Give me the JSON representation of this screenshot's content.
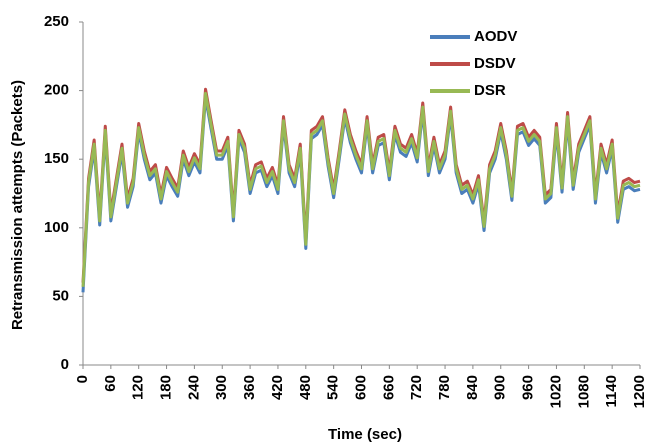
{
  "chart_data": {
    "type": "line",
    "xlabel": "Time (sec)",
    "ylabel": "Retransmission attempts (Packets)",
    "x": [
      0,
      12,
      24,
      36,
      48,
      60,
      72,
      84,
      96,
      108,
      120,
      132,
      144,
      156,
      168,
      180,
      192,
      204,
      216,
      228,
      240,
      252,
      264,
      276,
      288,
      300,
      312,
      324,
      336,
      348,
      360,
      372,
      384,
      396,
      408,
      420,
      432,
      444,
      456,
      468,
      480,
      492,
      504,
      516,
      528,
      540,
      552,
      564,
      576,
      588,
      600,
      612,
      624,
      636,
      648,
      660,
      672,
      684,
      696,
      708,
      720,
      732,
      744,
      756,
      768,
      780,
      792,
      804,
      816,
      828,
      840,
      852,
      864,
      876,
      888,
      900,
      912,
      924,
      936,
      948,
      960,
      972,
      984,
      996,
      1008,
      1020,
      1032,
      1044,
      1056,
      1068,
      1080,
      1092,
      1104,
      1116,
      1128,
      1140,
      1152,
      1164,
      1176,
      1188,
      1200
    ],
    "series": [
      {
        "name": "AODV",
        "color": "#4a7ebb",
        "values": [
          53,
          130,
          158,
          102,
          168,
          105,
          130,
          155,
          115,
          130,
          170,
          150,
          135,
          140,
          118,
          138,
          130,
          123,
          150,
          138,
          148,
          140,
          195,
          172,
          150,
          150,
          160,
          105,
          165,
          155,
          125,
          140,
          142,
          130,
          138,
          125,
          175,
          140,
          130,
          155,
          85,
          165,
          168,
          175,
          145,
          122,
          150,
          180,
          162,
          150,
          140,
          175,
          140,
          160,
          162,
          135,
          168,
          155,
          152,
          162,
          148,
          185,
          138,
          160,
          140,
          150,
          182,
          140,
          125,
          128,
          118,
          132,
          98,
          140,
          150,
          170,
          150,
          120,
          168,
          170,
          160,
          165,
          160,
          118,
          122,
          170,
          126,
          178,
          128,
          155,
          165,
          175,
          118,
          155,
          140,
          158,
          104,
          128,
          130,
          127,
          128
        ]
      },
      {
        "name": "DSDV",
        "color": "#be4b48",
        "values": [
          60,
          136,
          164,
          108,
          174,
          111,
          136,
          161,
          121,
          136,
          176,
          156,
          141,
          146,
          124,
          144,
          136,
          129,
          156,
          144,
          154,
          146,
          201,
          178,
          156,
          156,
          166,
          111,
          171,
          161,
          131,
          146,
          148,
          136,
          144,
          131,
          181,
          146,
          136,
          161,
          91,
          171,
          174,
          181,
          151,
          128,
          156,
          186,
          168,
          156,
          146,
          181,
          146,
          166,
          168,
          141,
          174,
          161,
          158,
          168,
          154,
          191,
          144,
          166,
          146,
          156,
          188,
          146,
          131,
          134,
          124,
          138,
          104,
          146,
          156,
          176,
          156,
          126,
          174,
          176,
          166,
          171,
          166,
          124,
          128,
          176,
          132,
          184,
          134,
          161,
          171,
          181,
          124,
          161,
          146,
          164,
          110,
          134,
          136,
          133,
          134
        ]
      },
      {
        "name": "DSR",
        "color": "#98b954",
        "values": [
          57,
          133,
          161,
          105,
          171,
          108,
          133,
          158,
          118,
          133,
          173,
          153,
          138,
          143,
          121,
          141,
          133,
          126,
          153,
          141,
          151,
          143,
          198,
          175,
          153,
          153,
          163,
          108,
          168,
          158,
          128,
          143,
          145,
          133,
          141,
          128,
          178,
          143,
          133,
          158,
          88,
          168,
          171,
          178,
          148,
          125,
          153,
          183,
          165,
          153,
          143,
          178,
          143,
          163,
          165,
          138,
          171,
          158,
          155,
          165,
          151,
          188,
          141,
          163,
          143,
          153,
          185,
          143,
          128,
          131,
          121,
          135,
          101,
          143,
          153,
          173,
          153,
          123,
          171,
          173,
          163,
          168,
          163,
          121,
          125,
          173,
          129,
          181,
          131,
          158,
          168,
          178,
          121,
          158,
          143,
          161,
          107,
          131,
          133,
          130,
          131
        ]
      }
    ],
    "xlim": [
      0,
      1200
    ],
    "xticks": [
      0,
      60,
      120,
      180,
      240,
      300,
      360,
      420,
      480,
      540,
      600,
      660,
      720,
      780,
      840,
      900,
      960,
      1020,
      1080,
      1140,
      1200
    ],
    "ylim": [
      0,
      250
    ],
    "yticks": [
      0,
      50,
      100,
      150,
      200,
      250
    ],
    "grid": false,
    "legend": "top-right"
  }
}
